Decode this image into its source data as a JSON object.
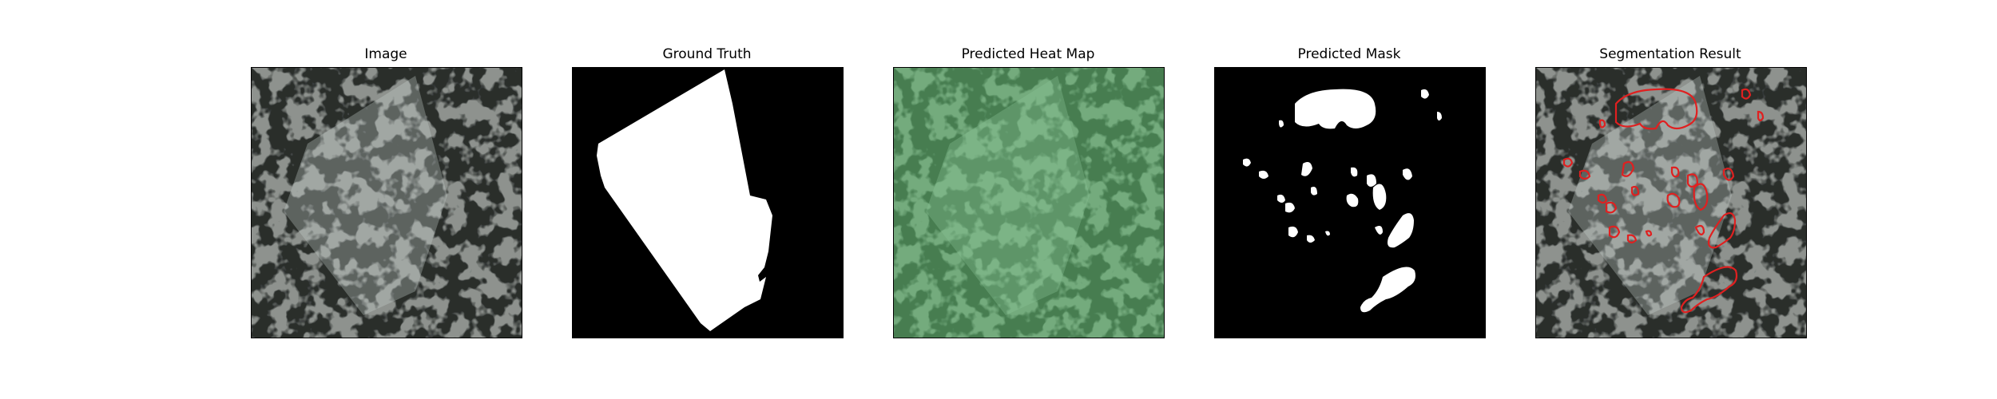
{
  "figure": {
    "panels": [
      {
        "title": "Image"
      },
      {
        "title": "Ground Truth"
      },
      {
        "title": "Predicted Heat Map"
      },
      {
        "title": "Predicted Mask"
      },
      {
        "title": "Segmentation Result"
      }
    ]
  },
  "colors": {
    "background": "#ffffff",
    "mask_foreground": "#ffffff",
    "mask_background": "#000000",
    "heatmap_tint": "#5fbf6f",
    "contour": "#e02020"
  }
}
